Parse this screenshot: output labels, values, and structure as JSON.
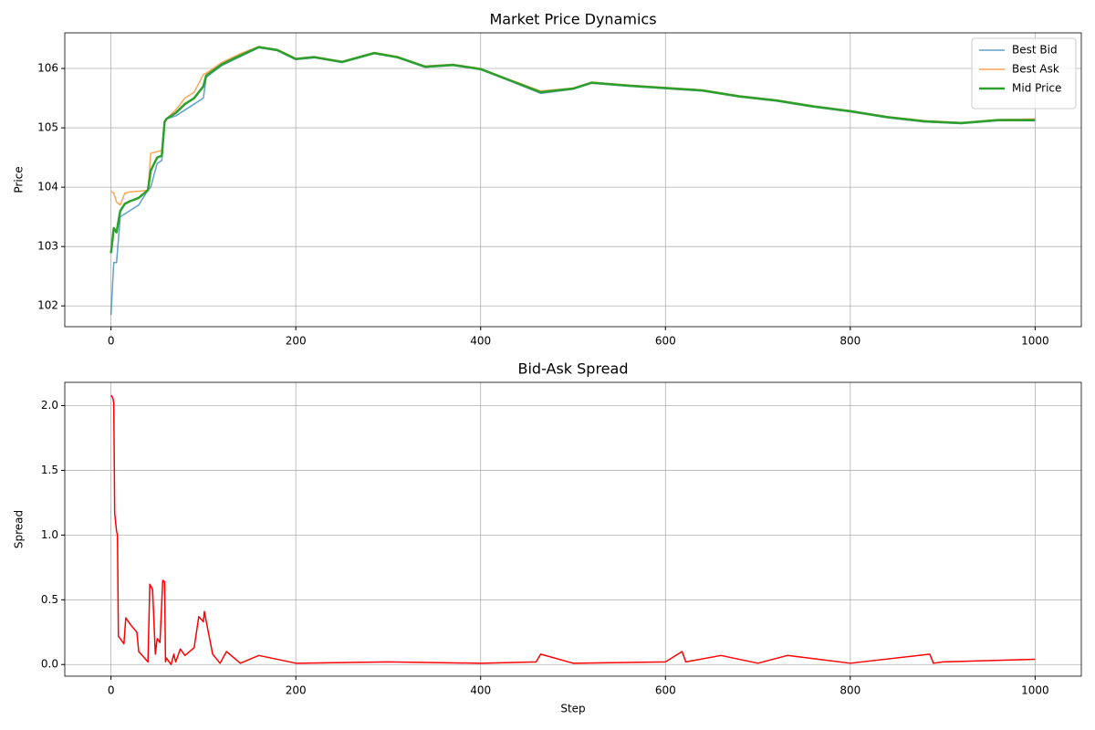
{
  "chart_data": [
    {
      "type": "line",
      "title": "Market Price Dynamics",
      "ylabel": "Price",
      "x": [
        0,
        3,
        6,
        10,
        15,
        20,
        30,
        40,
        43,
        50,
        55,
        58,
        60,
        70,
        80,
        90,
        100,
        103,
        120,
        140,
        160,
        180,
        200,
        220,
        250,
        285,
        310,
        340,
        370,
        400,
        430,
        465,
        500,
        520,
        560,
        600,
        640,
        680,
        720,
        760,
        800,
        840,
        880,
        920,
        960,
        1000
      ],
      "series": [
        {
          "name": "Best Bid",
          "color": "#1f77b4",
          "alpha": 0.7,
          "linewidth": 1.5,
          "values": [
            101.85,
            102.73,
            102.73,
            103.5,
            103.55,
            103.6,
            103.7,
            103.95,
            104.0,
            104.4,
            104.45,
            105.1,
            105.15,
            105.2,
            105.3,
            105.4,
            105.5,
            105.85,
            106.05,
            106.2,
            106.35,
            106.3,
            106.15,
            106.18,
            106.1,
            106.25,
            106.18,
            106.02,
            106.05,
            105.98,
            105.8,
            105.58,
            105.65,
            105.75,
            105.7,
            105.66,
            105.62,
            105.52,
            105.45,
            105.35,
            105.27,
            105.17,
            105.1,
            105.07,
            105.12,
            105.12
          ]
        },
        {
          "name": "Best Ask",
          "color": "#ff7f0e",
          "alpha": 0.7,
          "linewidth": 1.5,
          "values": [
            103.93,
            103.9,
            103.75,
            103.7,
            103.9,
            103.92,
            103.93,
            103.95,
            104.57,
            104.6,
            104.62,
            105.1,
            105.15,
            105.3,
            105.5,
            105.6,
            105.9,
            105.92,
            106.1,
            106.25,
            106.37,
            106.32,
            106.17,
            106.2,
            106.12,
            106.27,
            106.2,
            106.04,
            106.07,
            106.0,
            105.82,
            105.62,
            105.67,
            105.77,
            105.72,
            105.68,
            105.64,
            105.54,
            105.47,
            105.37,
            105.29,
            105.19,
            105.12,
            105.09,
            105.14,
            105.15
          ]
        },
        {
          "name": "Mid Price",
          "color": "#2ca02c",
          "alpha": 1,
          "linewidth": 2.5,
          "values": [
            102.89,
            103.31,
            103.24,
            103.6,
            103.72,
            103.76,
            103.82,
            103.95,
            104.28,
            104.5,
            104.53,
            105.1,
            105.15,
            105.25,
            105.4,
            105.5,
            105.7,
            105.88,
            106.07,
            106.22,
            106.36,
            106.31,
            106.16,
            106.19,
            106.11,
            106.26,
            106.19,
            106.03,
            106.06,
            105.99,
            105.81,
            105.6,
            105.66,
            105.76,
            105.71,
            105.67,
            105.63,
            105.53,
            105.46,
            105.36,
            105.28,
            105.18,
            105.11,
            105.08,
            105.13,
            105.13
          ]
        }
      ],
      "xlim": [
        -50,
        1050
      ],
      "xticks": [
        0,
        200,
        400,
        600,
        800,
        1000
      ],
      "ylim": [
        101.65,
        106.6
      ],
      "yticks": [
        102,
        103,
        104,
        105,
        106
      ],
      "grid": true,
      "legend": "upper right"
    },
    {
      "type": "line",
      "title": "Bid-Ask Spread",
      "xlabel": "Step",
      "ylabel": "Spread",
      "x": [
        0,
        2,
        3,
        4,
        6,
        7,
        8,
        14,
        16,
        22,
        28,
        30,
        40,
        42,
        45,
        48,
        50,
        53,
        56,
        58,
        59,
        60,
        65,
        68,
        70,
        75,
        80,
        90,
        95,
        100,
        101,
        110,
        118,
        125,
        140,
        160,
        200,
        300,
        400,
        460,
        465,
        500,
        600,
        618,
        622,
        660,
        700,
        732,
        800,
        886,
        890,
        900,
        1000
      ],
      "series": [
        {
          "name": "Spread",
          "color": "#ff0000",
          "alpha": 1,
          "linewidth": 1.5,
          "values": [
            2.08,
            2.06,
            2.02,
            1.17,
            1.03,
            1.0,
            0.22,
            0.16,
            0.36,
            0.3,
            0.25,
            0.1,
            0.02,
            0.62,
            0.58,
            0.08,
            0.2,
            0.17,
            0.65,
            0.64,
            0.02,
            0.05,
            0.0,
            0.08,
            0.02,
            0.12,
            0.07,
            0.13,
            0.37,
            0.33,
            0.41,
            0.08,
            0.01,
            0.1,
            0.01,
            0.07,
            0.01,
            0.02,
            0.01,
            0.02,
            0.08,
            0.01,
            0.02,
            0.1,
            0.02,
            0.07,
            0.01,
            0.07,
            0.01,
            0.08,
            0.01,
            0.02,
            0.04
          ]
        }
      ],
      "xlim": [
        -50,
        1050
      ],
      "xticks": [
        0,
        200,
        400,
        600,
        800,
        1000
      ],
      "ylim": [
        -0.09,
        2.18
      ],
      "yticks": [
        {
          "value": 0,
          "label": "0.0"
        },
        0.5,
        {
          "value": 1,
          "label": "1.0"
        },
        1.5,
        {
          "value": 2,
          "label": "2.0"
        }
      ],
      "grid": true
    }
  ]
}
